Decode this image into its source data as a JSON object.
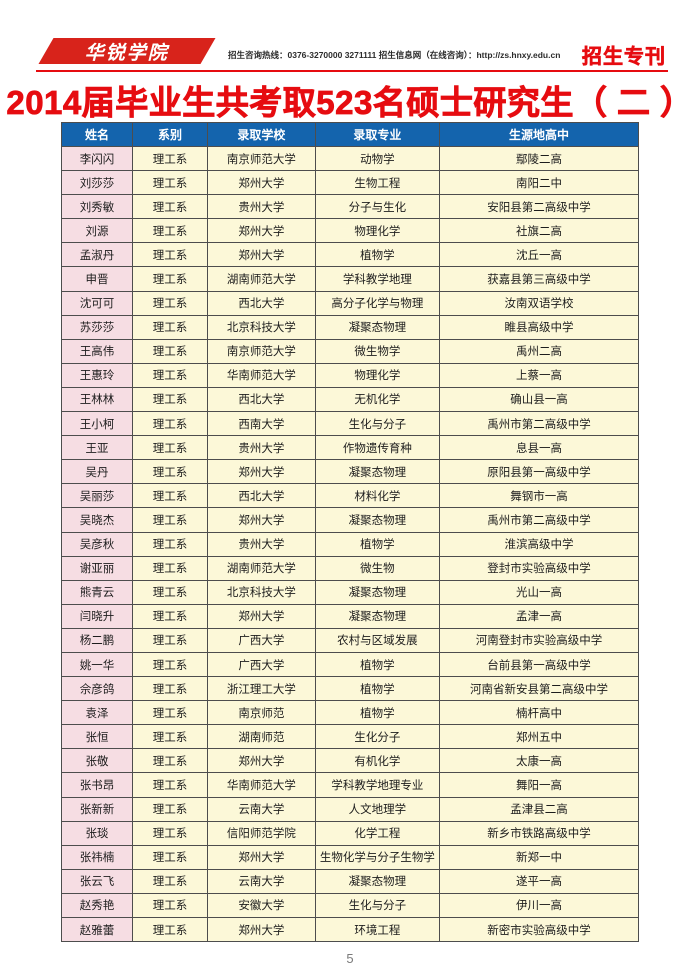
{
  "header": {
    "logo_text": "华锐学院",
    "info_line": "招生咨询热线：0376-3270000  3271111   招生信息网（在线咨询）：http://zs.hnxy.edu.cn",
    "badge": "招生专刊"
  },
  "title": "2014届毕业生共考取523名硕士研究生（ 二 ）",
  "table": {
    "columns": [
      "姓名",
      "系别",
      "录取学校",
      "录取专业",
      "生源地高中"
    ],
    "column_widths": [
      "12.3%",
      "13%",
      "18.7%",
      "21.5%",
      "34.5%"
    ],
    "rows": [
      [
        "李闪闪",
        "理工系",
        "南京师范大学",
        "动物学",
        "鄢陵二高"
      ],
      [
        "刘莎莎",
        "理工系",
        "郑州大学",
        "生物工程",
        "南阳二中"
      ],
      [
        "刘秀敏",
        "理工系",
        "贵州大学",
        "分子与生化",
        "安阳县第二高级中学"
      ],
      [
        "刘源",
        "理工系",
        "郑州大学",
        "物理化学",
        "社旗二高"
      ],
      [
        "孟淑丹",
        "理工系",
        "郑州大学",
        "植物学",
        "沈丘一高"
      ],
      [
        "申晋",
        "理工系",
        "湖南师范大学",
        "学科教学地理",
        "获嘉县第三高级中学"
      ],
      [
        "沈可可",
        "理工系",
        "西北大学",
        "高分子化学与物理",
        "汝南双语学校"
      ],
      [
        "苏莎莎",
        "理工系",
        "北京科技大学",
        "凝聚态物理",
        "睢县高级中学"
      ],
      [
        "王高伟",
        "理工系",
        "南京师范大学",
        "微生物学",
        "禹州二高"
      ],
      [
        "王惠玲",
        "理工系",
        "华南师范大学",
        "物理化学",
        "上蔡一高"
      ],
      [
        "王林林",
        "理工系",
        "西北大学",
        "无机化学",
        "确山县一高"
      ],
      [
        "王小柯",
        "理工系",
        "西南大学",
        "生化与分子",
        "禹州市第二高级中学"
      ],
      [
        "王亚",
        "理工系",
        "贵州大学",
        "作物遗传育种",
        "息县一高"
      ],
      [
        "吴丹",
        "理工系",
        "郑州大学",
        "凝聚态物理",
        "原阳县第一高级中学"
      ],
      [
        "吴丽莎",
        "理工系",
        "西北大学",
        "材料化学",
        "舞钢市一高"
      ],
      [
        "吴晓杰",
        "理工系",
        "郑州大学",
        "凝聚态物理",
        "禹州市第二高级中学"
      ],
      [
        "吴彦秋",
        "理工系",
        "贵州大学",
        "植物学",
        "淮滨高级中学"
      ],
      [
        "谢亚丽",
        "理工系",
        "湖南师范大学",
        "微生物",
        "登封市实验高级中学"
      ],
      [
        "熊青云",
        "理工系",
        "北京科技大学",
        "凝聚态物理",
        "光山一高"
      ],
      [
        "闫晓升",
        "理工系",
        "郑州大学",
        "凝聚态物理",
        "孟津一高"
      ],
      [
        "杨二鹏",
        "理工系",
        "广西大学",
        "农村与区域发展",
        "河南登封市实验高级中学"
      ],
      [
        "姚一华",
        "理工系",
        "广西大学",
        "植物学",
        "台前县第一高级中学"
      ],
      [
        "佘彦鸽",
        "理工系",
        "浙江理工大学",
        "植物学",
        "河南省新安县第二高级中学"
      ],
      [
        "袁泽",
        "理工系",
        "南京师范",
        "植物学",
        "楠杆高中"
      ],
      [
        "张恒",
        "理工系",
        "湖南师范",
        "生化分子",
        "郑州五中"
      ],
      [
        "张敬",
        "理工系",
        "郑州大学",
        "有机化学",
        "太康一高"
      ],
      [
        "张书昂",
        "理工系",
        "华南师范大学",
        "学科教学地理专业",
        "舞阳一高"
      ],
      [
        "张新新",
        "理工系",
        "云南大学",
        "人文地理学",
        "孟津县二高"
      ],
      [
        "张琰",
        "理工系",
        "信阳师范学院",
        "化学工程",
        "新乡市铁路高级中学"
      ],
      [
        "张祎楠",
        "理工系",
        "郑州大学",
        "生物化学与分子生物学",
        "新郑一中"
      ],
      [
        "张云飞",
        "理工系",
        "云南大学",
        "凝聚态物理",
        "遂平一高"
      ],
      [
        "赵秀艳",
        "理工系",
        "安徽大学",
        "生化与分子",
        "伊川一高"
      ],
      [
        "赵雅蕾",
        "理工系",
        "郑州大学",
        "环境工程",
        "新密市实验高级中学"
      ]
    ]
  },
  "footer": {
    "page_number": "5"
  },
  "colors": {
    "accent_red": "#e60c10",
    "banner_red": "#d8231b",
    "header_blue": "#1464ad",
    "name_pink": "#f6dde3",
    "cell_yellow": "#fcf8d8"
  }
}
